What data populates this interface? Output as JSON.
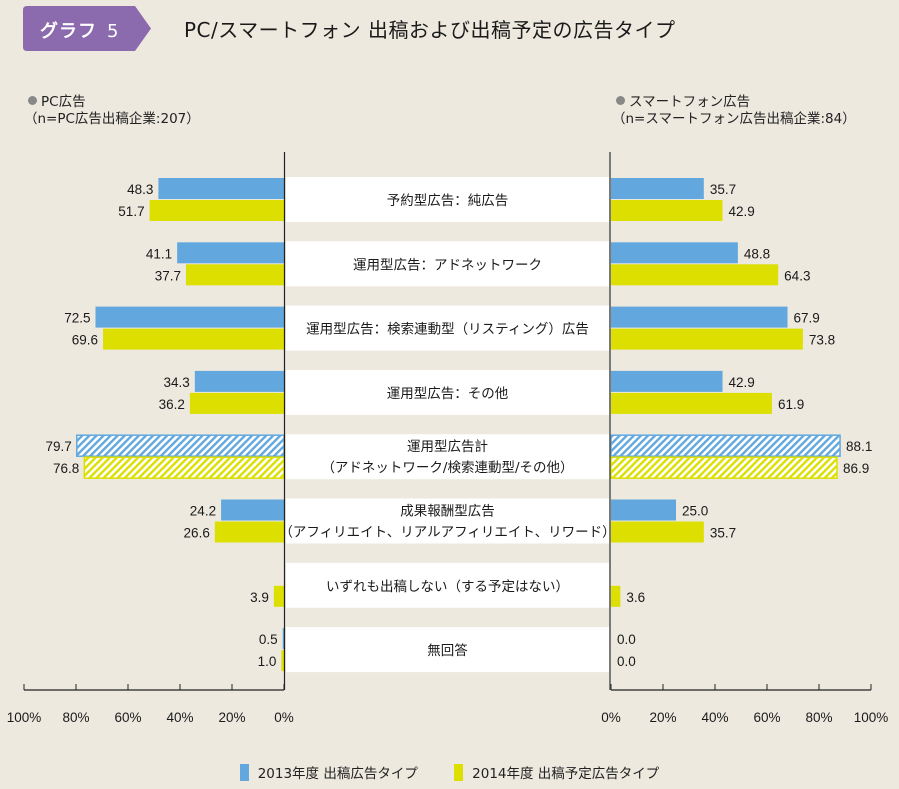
{
  "header": {
    "badge_label": "グラフ",
    "badge_number": "5",
    "title": "PC/スマートフォン 出稿および出稿予定の広告タイプ"
  },
  "panels": {
    "left": {
      "name": "PC広告",
      "n_note": "（n=PC広告出稿企業:207）"
    },
    "right": {
      "name": "スマートフォン広告",
      "n_note": "（n=スマートフォン広告出稿企業:84）"
    }
  },
  "colors": {
    "series_2013": "#62a8de",
    "series_2014": "#dcdf00",
    "badge": "#8b6aad",
    "background": "#ede9df",
    "label_box": "#ffffff"
  },
  "legend": [
    {
      "label": "2013年度 出稿広告タイプ",
      "color_key": "series_2013"
    },
    {
      "label": "2014年度 出稿予定広告タイプ",
      "color_key": "series_2014"
    }
  ],
  "chart_data": {
    "type": "bar",
    "orientation": "horizontal-butterfly",
    "title": "PC/スマートフォン 出稿および出稿予定の広告タイプ",
    "xlabel": "",
    "ylabel": "",
    "xlim": [
      0,
      100
    ],
    "unit": "%",
    "grid": false,
    "legend_position": "bottom",
    "categories": [
      {
        "label": [
          "予約型広告：純広告"
        ],
        "hatched": false
      },
      {
        "label": [
          "運用型広告：アドネットワーク"
        ],
        "hatched": false
      },
      {
        "label": [
          "運用型広告：検索連動型（リスティング）広告"
        ],
        "hatched": false
      },
      {
        "label": [
          "運用型広告：その他"
        ],
        "hatched": false
      },
      {
        "label": [
          "運用型広告計",
          "（アドネットワーク/検索連動型/その他）"
        ],
        "hatched": true
      },
      {
        "label": [
          "成果報酬型広告",
          "（アフィリエイト、リアルアフィリエイト、リワード）"
        ],
        "hatched": false
      },
      {
        "label": [
          "いずれも出稿しない（する予定はない）"
        ],
        "hatched": false
      },
      {
        "label": [
          "無回答"
        ],
        "hatched": false
      }
    ],
    "panels": [
      {
        "name": "PC広告",
        "direction": "left",
        "series": [
          {
            "name": "2013年度 出稿広告タイプ",
            "values": [
              48.3,
              41.1,
              72.5,
              34.3,
              79.7,
              24.2,
              null,
              0.5
            ]
          },
          {
            "name": "2014年度 出稿予定広告タイプ",
            "values": [
              51.7,
              37.7,
              69.6,
              36.2,
              76.8,
              26.6,
              3.9,
              1.0
            ]
          }
        ]
      },
      {
        "name": "スマートフォン広告",
        "direction": "right",
        "series": [
          {
            "name": "2013年度 出稿広告タイプ",
            "values": [
              35.7,
              48.8,
              67.9,
              42.9,
              88.1,
              25.0,
              null,
              0.0
            ]
          },
          {
            "name": "2014年度 出稿予定広告タイプ",
            "values": [
              42.9,
              64.3,
              73.8,
              61.9,
              86.9,
              35.7,
              3.6,
              0.0
            ]
          }
        ]
      }
    ],
    "ticks_left": [
      "100%",
      "80%",
      "60%",
      "40%",
      "20%",
      "0%"
    ],
    "ticks_right": [
      "0%",
      "20%",
      "40%",
      "60%",
      "80%",
      "100%"
    ],
    "tick_values": [
      0,
      20,
      40,
      60,
      80,
      100
    ]
  }
}
